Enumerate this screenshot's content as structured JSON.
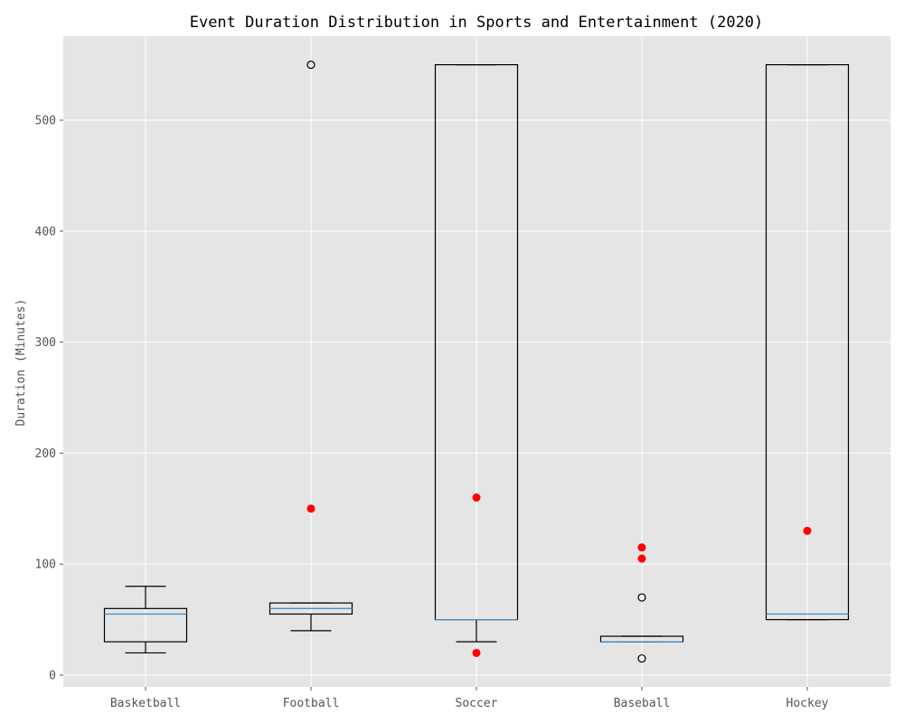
{
  "chart_data": {
    "type": "box",
    "title": "Event Duration Distribution in Sports and Entertainment (2020)",
    "xlabel": "",
    "ylabel": "Duration (Minutes)",
    "ylim": [
      -10,
      575
    ],
    "yticks": [
      0,
      100,
      200,
      300,
      400,
      500
    ],
    "grid": true,
    "categories": [
      "Basketball",
      "Football",
      "Soccer",
      "Baseball",
      "Hockey"
    ],
    "boxes": [
      {
        "category": "Basketball",
        "whisker_low": 20,
        "q1": 30,
        "median": 55,
        "q3": 60,
        "whisker_high": 80,
        "fliers": [],
        "extra_points": []
      },
      {
        "category": "Football",
        "whisker_low": 40,
        "q1": 55,
        "median": 60,
        "q3": 65,
        "whisker_high": 65,
        "fliers": [
          550
        ],
        "extra_points": [
          150
        ]
      },
      {
        "category": "Soccer",
        "whisker_low": 30,
        "q1": 50,
        "median": 50,
        "q3": 550,
        "whisker_high": 550,
        "fliers": [],
        "extra_points": [
          20,
          160
        ]
      },
      {
        "category": "Baseball",
        "whisker_low": 30,
        "q1": 30,
        "median": 30,
        "q3": 35,
        "whisker_high": 35,
        "fliers": [
          15,
          70
        ],
        "extra_points": [
          105,
          115
        ]
      },
      {
        "category": "Hockey",
        "whisker_low": 50,
        "q1": 50,
        "median": 55,
        "q3": 550,
        "whisker_high": 550,
        "fliers": [],
        "extra_points": [
          130
        ]
      }
    ],
    "colors": {
      "panel": "#e5e5e5",
      "grid": "#ffffff",
      "box": "#000000",
      "median": "#4a90c8",
      "extra_point": "#ff0000"
    }
  }
}
